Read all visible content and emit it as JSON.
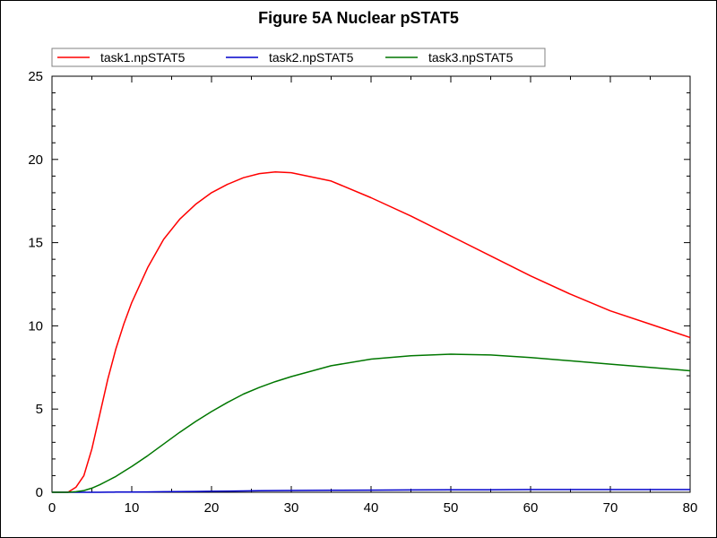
{
  "chart_data": {
    "type": "line",
    "title": "Figure 5A Nuclear pSTAT5",
    "xlabel": "",
    "ylabel": "",
    "xlim": [
      0,
      80
    ],
    "ylim": [
      0,
      25
    ],
    "x_ticks": [
      0,
      10,
      20,
      30,
      40,
      50,
      60,
      70,
      80
    ],
    "y_ticks": [
      0,
      5,
      10,
      15,
      20,
      25
    ],
    "grid": false,
    "legend_position": "top",
    "x": [
      0,
      2,
      3,
      4,
      5,
      6,
      7,
      8,
      9,
      10,
      12,
      14,
      16,
      18,
      20,
      22,
      24,
      26,
      28,
      30,
      35,
      40,
      45,
      50,
      55,
      60,
      65,
      70,
      75,
      80
    ],
    "series": [
      {
        "name": "task1.npSTAT5",
        "color": "#ff0000",
        "values": [
          0,
          0,
          0.3,
          1.0,
          2.6,
          4.7,
          6.8,
          8.6,
          10.1,
          11.4,
          13.5,
          15.2,
          16.4,
          17.3,
          18.0,
          18.5,
          18.9,
          19.15,
          19.25,
          19.2,
          18.7,
          17.7,
          16.6,
          15.4,
          14.2,
          13.0,
          11.9,
          10.9,
          10.1,
          9.3
        ]
      },
      {
        "name": "task2.npSTAT5",
        "color": "#0000cc",
        "values": [
          0,
          0,
          0,
          0,
          0,
          0,
          0.005,
          0.01,
          0.01,
          0.015,
          0.02,
          0.03,
          0.04,
          0.05,
          0.06,
          0.07,
          0.08,
          0.09,
          0.1,
          0.11,
          0.12,
          0.13,
          0.14,
          0.15,
          0.15,
          0.16,
          0.16,
          0.16,
          0.16,
          0.16
        ]
      },
      {
        "name": "task3.npSTAT5",
        "color": "#007700",
        "values": [
          0,
          0,
          0.03,
          0.1,
          0.25,
          0.45,
          0.7,
          0.95,
          1.25,
          1.55,
          2.2,
          2.9,
          3.6,
          4.25,
          4.85,
          5.4,
          5.9,
          6.3,
          6.65,
          6.95,
          7.6,
          8.0,
          8.2,
          8.3,
          8.25,
          8.1,
          7.9,
          7.7,
          7.5,
          7.3
        ]
      }
    ]
  }
}
